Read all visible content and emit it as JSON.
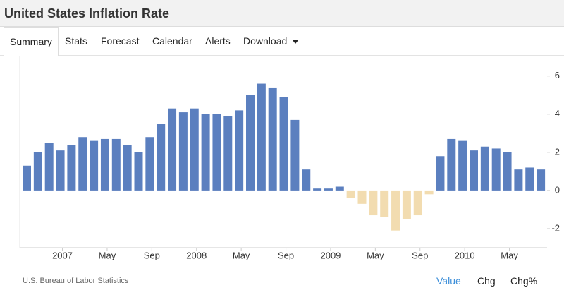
{
  "header": {
    "title": "United States Inflation Rate"
  },
  "tabs": [
    "Summary",
    "Stats",
    "Forecast",
    "Calendar",
    "Alerts",
    "Download"
  ],
  "chart_data": {
    "type": "bar",
    "categories": [
      null,
      null,
      null,
      "2007",
      null,
      null,
      null,
      "May",
      null,
      null,
      null,
      "Sep",
      null,
      null,
      null,
      "2008",
      null,
      null,
      null,
      "May",
      null,
      null,
      null,
      "Sep",
      null,
      null,
      null,
      "2009",
      null,
      null,
      null,
      "May",
      null,
      null,
      null,
      "Sep",
      null,
      null,
      null,
      "2010",
      null,
      null,
      null,
      "May",
      null,
      null,
      null
    ],
    "values": [
      1.3,
      2.0,
      2.5,
      2.1,
      2.4,
      2.8,
      2.6,
      2.7,
      2.7,
      2.4,
      2.0,
      2.8,
      3.5,
      4.3,
      4.1,
      4.3,
      4.0,
      4.0,
      3.9,
      4.2,
      5.0,
      5.6,
      5.4,
      4.9,
      3.7,
      1.1,
      0.1,
      0.1,
      0.2,
      -0.4,
      -0.7,
      -1.3,
      -1.4,
      -2.1,
      -1.5,
      -1.3,
      -0.2,
      1.8,
      2.7,
      2.6,
      2.1,
      2.3,
      2.2,
      2.0,
      1.1,
      1.2,
      1.1
    ],
    "color": "#5b7fbf",
    "negative_color": "#f2dcb0",
    "ylim": [
      -3,
      7.1
    ],
    "yticks": [
      -2,
      0,
      2,
      4,
      6
    ]
  },
  "footer": {
    "source": "U.S. Bureau of Labor Statistics",
    "options": [
      "Value",
      "Chg",
      "Chg%"
    ]
  }
}
